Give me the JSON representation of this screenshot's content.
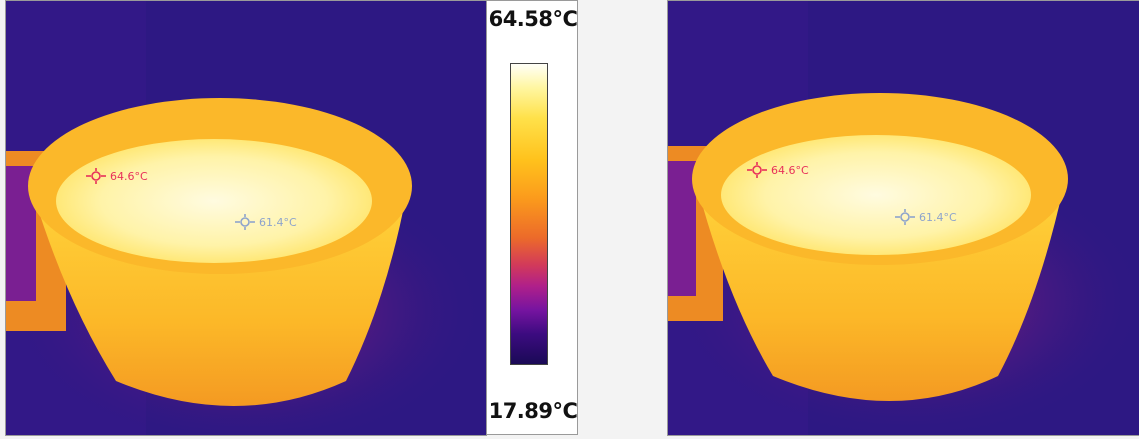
{
  "colors": {
    "background": "#2d1883",
    "max_marker": "#e8305a",
    "min_marker": "#8ea4cc"
  },
  "legend": {
    "max_label": "64.58°C",
    "min_label": "17.89°C"
  },
  "markers": {
    "left_hot": "64.6°C",
    "left_cool": "61.4°C",
    "right_hot": "64.6°C",
    "right_cool": "61.4°C"
  }
}
